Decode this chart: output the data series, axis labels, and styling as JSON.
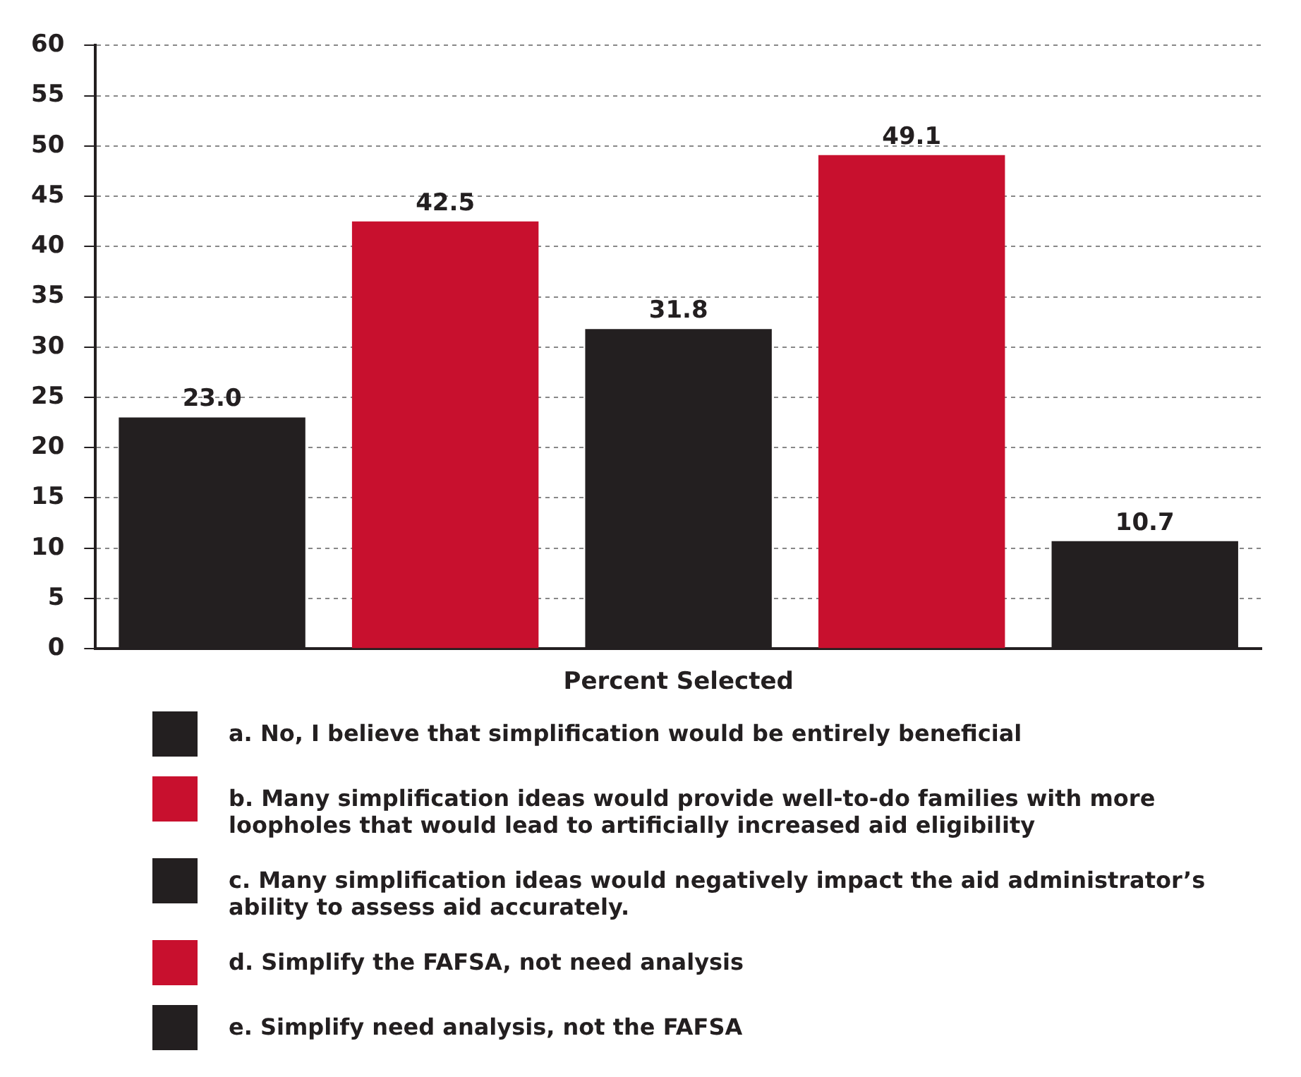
{
  "chart_data": {
    "type": "bar",
    "xlabel": "Percent Selected",
    "categories": [
      null,
      null,
      null,
      null,
      null
    ],
    "series": [
      {
        "name": "a. No, I believe that simplification would be entirely beneficial",
        "color": "#231f20",
        "values": [
          23.0,
          null,
          null,
          null,
          null
        ],
        "value_labels": [
          "23.0",
          null,
          null,
          null,
          null
        ]
      },
      {
        "name": "b. Many simplification ideas would provide well-to-do families with more loopholes that would lead to artificially increased aid eligibility",
        "color": "#c8102e",
        "values": [
          null,
          42.5,
          null,
          null,
          null
        ],
        "value_labels": [
          null,
          "42.5",
          null,
          null,
          null
        ]
      },
      {
        "name": "c. Many simplification ideas would negatively impact the aid administrator’s ability to assess aid accurately.",
        "color": "#231f20",
        "values": [
          null,
          null,
          31.8,
          null,
          null
        ],
        "value_labels": [
          null,
          null,
          "31.8",
          null,
          null
        ]
      },
      {
        "name": "d. Simplify the FAFSA, not need analysis",
        "color": "#c8102e",
        "values": [
          null,
          null,
          null,
          49.1,
          null
        ],
        "value_labels": [
          null,
          null,
          null,
          "49.1",
          null
        ]
      },
      {
        "name": "e. Simplify need analysis, not the FAFSA",
        "color": "#231f20",
        "values": [
          null,
          null,
          null,
          null,
          10.7
        ],
        "value_labels": [
          null,
          null,
          null,
          null,
          "10.7"
        ]
      }
    ],
    "ylim": [
      0,
      60
    ],
    "yticks": [
      0,
      5,
      10,
      15,
      20,
      25,
      30,
      35,
      40,
      45,
      50,
      55,
      60
    ],
    "grid": "y",
    "legend": "bottom",
    "tick_labels": "y"
  }
}
